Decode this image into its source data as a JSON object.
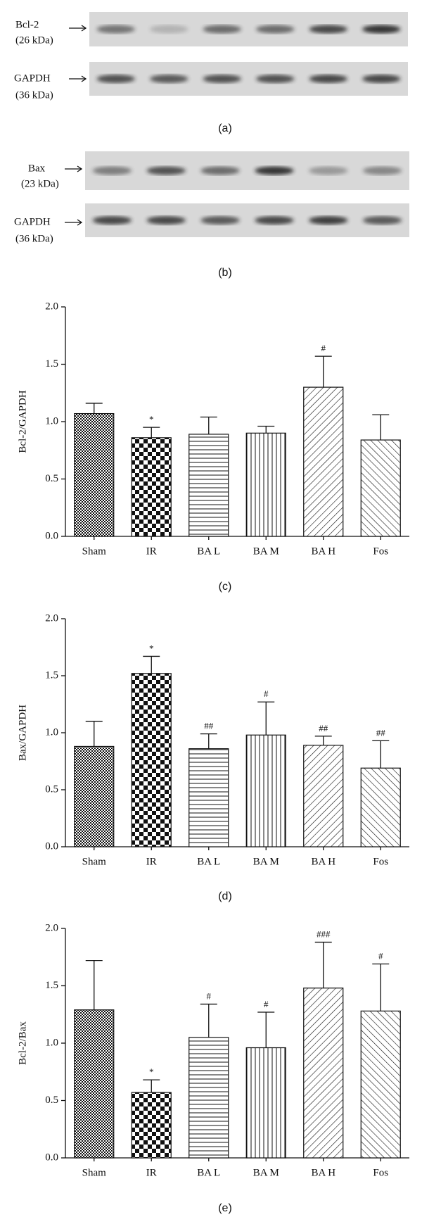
{
  "figure_a": {
    "caption": "(a)",
    "rows": [
      {
        "protein": "Bcl-2",
        "size": "(26 kDa)"
      },
      {
        "protein": "GAPDH",
        "size": "(36 kDa)"
      }
    ]
  },
  "figure_b": {
    "caption": "(b)",
    "rows": [
      {
        "protein": "Bax",
        "size": "(23 kDa)"
      },
      {
        "protein": "GAPDH",
        "size": "(36 kDa)"
      }
    ]
  },
  "chart_data": [
    {
      "type": "bar",
      "caption": "(c)",
      "y_label": "Bcl-2/GAPDH",
      "categories": [
        "Sham",
        "IR",
        "BA L",
        "BA M",
        "BA H",
        "Fos"
      ],
      "values": [
        1.07,
        0.86,
        0.89,
        0.9,
        1.3,
        0.84
      ],
      "errors": [
        0.09,
        0.09,
        0.15,
        0.06,
        0.27,
        0.22
      ],
      "significance": [
        null,
        "*",
        null,
        null,
        "#",
        null
      ],
      "ylim": [
        0,
        2
      ],
      "yticks": [
        {
          "value": 0,
          "label": "0.0"
        },
        {
          "value": 0.5,
          "label": "0.5"
        },
        {
          "value": 1,
          "label": "1.0"
        },
        {
          "value": 1.5,
          "label": "1.5"
        },
        {
          "value": 2,
          "label": "2.0"
        }
      ]
    },
    {
      "type": "bar",
      "caption": "(d)",
      "y_label": "Bax/GAPDH",
      "categories": [
        "Sham",
        "IR",
        "BA L",
        "BA M",
        "BA H",
        "Fos"
      ],
      "values": [
        0.88,
        1.52,
        0.86,
        0.98,
        0.89,
        0.69
      ],
      "errors": [
        0.22,
        0.15,
        0.13,
        0.29,
        0.08,
        0.24
      ],
      "significance": [
        null,
        "*",
        "##",
        "#",
        "##",
        "##"
      ],
      "ylim": [
        0,
        2
      ],
      "yticks": [
        {
          "value": 0,
          "label": "0.0"
        },
        {
          "value": 0.5,
          "label": "0.5"
        },
        {
          "value": 1,
          "label": "1.0"
        },
        {
          "value": 1.5,
          "label": "1.5"
        },
        {
          "value": 2,
          "label": "2.0"
        }
      ]
    },
    {
      "type": "bar",
      "caption": "(e)",
      "y_label": "Bcl-2/Bax",
      "categories": [
        "Sham",
        "IR",
        "BA L",
        "BA M",
        "BA H",
        "Fos"
      ],
      "values": [
        1.29,
        0.57,
        1.05,
        0.96,
        1.48,
        1.28
      ],
      "errors": [
        0.43,
        0.11,
        0.29,
        0.31,
        0.4,
        0.41
      ],
      "significance": [
        null,
        "*",
        "#",
        "#",
        "###",
        "#"
      ],
      "ylim": [
        0,
        2
      ],
      "yticks": [
        {
          "value": 0,
          "label": "0.0"
        },
        {
          "value": 0.5,
          "label": "0.5"
        },
        {
          "value": 1,
          "label": "1.0"
        },
        {
          "value": 1.5,
          "label": "1.5"
        },
        {
          "value": 2,
          "label": "2.0"
        }
      ]
    }
  ]
}
